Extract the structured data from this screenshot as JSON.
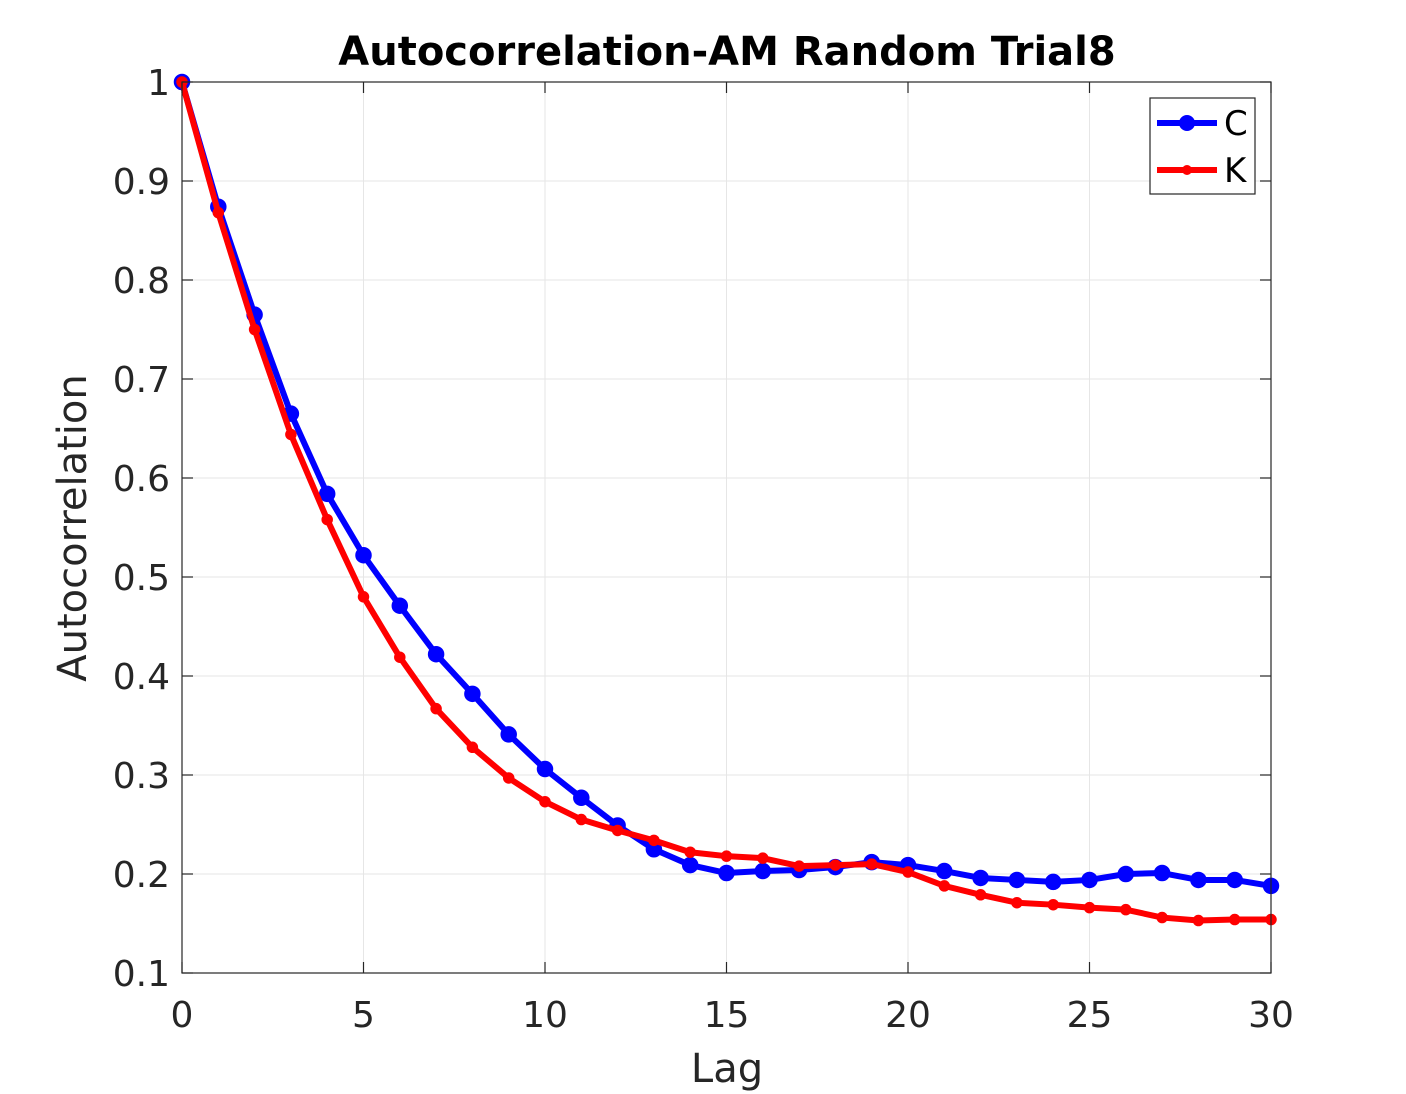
{
  "chart_data": {
    "type": "line",
    "title": "Autocorrelation-AM Random Trial8",
    "xlabel": "Lag",
    "ylabel": "Autocorrelation",
    "xlim": [
      0,
      30
    ],
    "ylim": [
      0.1,
      1
    ],
    "xticks": [
      0,
      5,
      10,
      15,
      20,
      25,
      30
    ],
    "yticks": [
      0.1,
      0.2,
      0.3,
      0.4,
      0.5,
      0.6,
      0.7,
      0.8,
      0.9,
      1
    ],
    "xtick_labels": [
      "0",
      "5",
      "10",
      "15",
      "20",
      "25",
      "30"
    ],
    "ytick_labels": [
      "0.1",
      "0.2",
      "0.3",
      "0.4",
      "0.5",
      "0.6",
      "0.7",
      "0.8",
      "0.9",
      "1"
    ],
    "grid": true,
    "legend_position": "top-right",
    "x": [
      0,
      1,
      2,
      3,
      4,
      5,
      6,
      7,
      8,
      9,
      10,
      11,
      12,
      13,
      14,
      15,
      16,
      17,
      18,
      19,
      20,
      21,
      22,
      23,
      24,
      25,
      26,
      27,
      28,
      29,
      30
    ],
    "series": [
      {
        "name": "C",
        "color": "#0000ff",
        "marker": "circle-large",
        "values": [
          1.0,
          0.874,
          0.765,
          0.665,
          0.584,
          0.522,
          0.471,
          0.422,
          0.382,
          0.341,
          0.306,
          0.277,
          0.249,
          0.225,
          0.209,
          0.201,
          0.203,
          0.204,
          0.207,
          0.212,
          0.209,
          0.203,
          0.196,
          0.194,
          0.192,
          0.194,
          0.2,
          0.201,
          0.194,
          0.194,
          0.188
        ]
      },
      {
        "name": "K",
        "color": "#ff0000",
        "marker": "circle-small",
        "values": [
          1.0,
          0.868,
          0.75,
          0.644,
          0.558,
          0.48,
          0.419,
          0.367,
          0.328,
          0.297,
          0.273,
          0.255,
          0.244,
          0.234,
          0.222,
          0.218,
          0.216,
          0.208,
          0.209,
          0.21,
          0.202,
          0.188,
          0.179,
          0.171,
          0.169,
          0.166,
          0.164,
          0.156,
          0.153,
          0.154,
          0.154
        ]
      }
    ]
  }
}
